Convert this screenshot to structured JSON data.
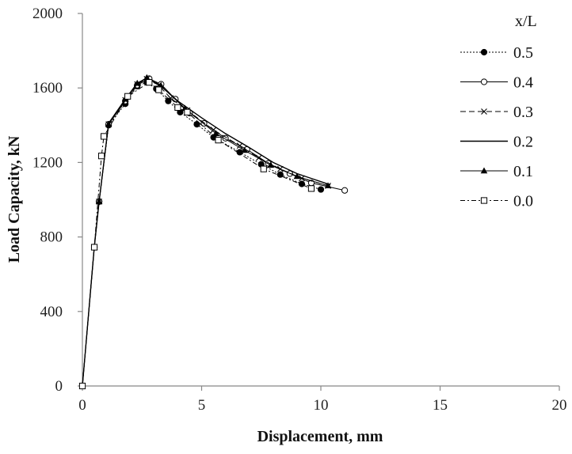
{
  "chart_data": {
    "type": "line",
    "xlabel": "Displacement, mm",
    "ylabel": "Load Capacity, kN",
    "xlim": [
      0,
      20
    ],
    "ylim": [
      0,
      2000
    ],
    "x_ticks": [
      0,
      5,
      10,
      15,
      20
    ],
    "y_ticks": [
      0,
      400,
      800,
      1200,
      1600,
      2000
    ],
    "grid": false,
    "legend": {
      "title": "x/L",
      "position": "right"
    },
    "series": [
      {
        "name": "0.5",
        "marker": "filled-circle",
        "dash": "2,2",
        "points": [
          [
            0,
            0
          ],
          [
            0.5,
            745
          ],
          [
            0.7,
            990
          ],
          [
            1.1,
            1400
          ],
          [
            1.8,
            1515
          ],
          [
            2.3,
            1610
          ],
          [
            2.7,
            1630
          ],
          [
            3.1,
            1595
          ],
          [
            3.6,
            1530
          ],
          [
            4.1,
            1470
          ],
          [
            4.8,
            1405
          ],
          [
            5.5,
            1335
          ],
          [
            6.6,
            1255
          ],
          [
            7.5,
            1190
          ],
          [
            8.3,
            1135
          ],
          [
            9.2,
            1085
          ],
          [
            10.0,
            1055
          ]
        ]
      },
      {
        "name": "0.4",
        "marker": "open-circle",
        "dash": "",
        "points": [
          [
            0,
            0
          ],
          [
            0.5,
            745
          ],
          [
            0.7,
            990
          ],
          [
            1.1,
            1405
          ],
          [
            1.8,
            1530
          ],
          [
            2.3,
            1615
          ],
          [
            2.8,
            1650
          ],
          [
            3.3,
            1620
          ],
          [
            3.9,
            1540
          ],
          [
            4.5,
            1465
          ],
          [
            5.1,
            1410
          ],
          [
            6.0,
            1330
          ],
          [
            6.9,
            1270
          ],
          [
            7.8,
            1195
          ],
          [
            8.7,
            1140
          ],
          [
            9.6,
            1090
          ],
          [
            11.0,
            1050
          ]
        ]
      },
      {
        "name": "0.3",
        "marker": "x",
        "dash": "7,4",
        "points": [
          [
            0,
            0
          ],
          [
            0.5,
            745
          ],
          [
            0.7,
            990
          ],
          [
            1.1,
            1405
          ],
          [
            1.8,
            1535
          ],
          [
            2.3,
            1620
          ],
          [
            2.7,
            1648
          ],
          [
            3.2,
            1615
          ],
          [
            3.7,
            1545
          ],
          [
            4.4,
            1480
          ],
          [
            5.5,
            1375
          ],
          [
            6.6,
            1290
          ],
          [
            7.4,
            1225
          ],
          [
            8.3,
            1165
          ],
          [
            9.2,
            1115
          ],
          [
            10.3,
            1075
          ]
        ]
      },
      {
        "name": "0.2",
        "marker": "none",
        "dash": "",
        "points": [
          [
            0,
            0
          ],
          [
            0.5,
            745
          ],
          [
            0.7,
            990
          ],
          [
            1.1,
            1410
          ],
          [
            1.8,
            1540
          ],
          [
            2.3,
            1625
          ],
          [
            2.7,
            1652
          ],
          [
            3.2,
            1620
          ],
          [
            4.0,
            1530
          ],
          [
            5.0,
            1440
          ],
          [
            6.0,
            1355
          ],
          [
            7.0,
            1280
          ],
          [
            8.0,
            1200
          ],
          [
            9.0,
            1140
          ],
          [
            10.4,
            1080
          ]
        ]
      },
      {
        "name": "0.1",
        "marker": "filled-triangle",
        "dash": "",
        "points": [
          [
            0,
            0
          ],
          [
            0.5,
            745
          ],
          [
            0.7,
            990
          ],
          [
            1.1,
            1405
          ],
          [
            1.8,
            1540
          ],
          [
            2.3,
            1625
          ],
          [
            2.7,
            1655
          ],
          [
            3.3,
            1610
          ],
          [
            4.3,
            1490
          ],
          [
            5.6,
            1355
          ],
          [
            6.8,
            1265
          ],
          [
            7.9,
            1185
          ],
          [
            9.0,
            1125
          ],
          [
            10.3,
            1075
          ]
        ]
      },
      {
        "name": "0.0",
        "marker": "open-square",
        "dash": "6,3,2,3",
        "points": [
          [
            0,
            0
          ],
          [
            0.5,
            745
          ],
          [
            0.8,
            1235
          ],
          [
            0.9,
            1340
          ],
          [
            1.9,
            1555
          ],
          [
            2.8,
            1630
          ],
          [
            3.2,
            1590
          ],
          [
            4.0,
            1495
          ],
          [
            4.4,
            1470
          ],
          [
            5.7,
            1320
          ],
          [
            7.6,
            1165
          ],
          [
            9.6,
            1060
          ]
        ]
      }
    ]
  }
}
